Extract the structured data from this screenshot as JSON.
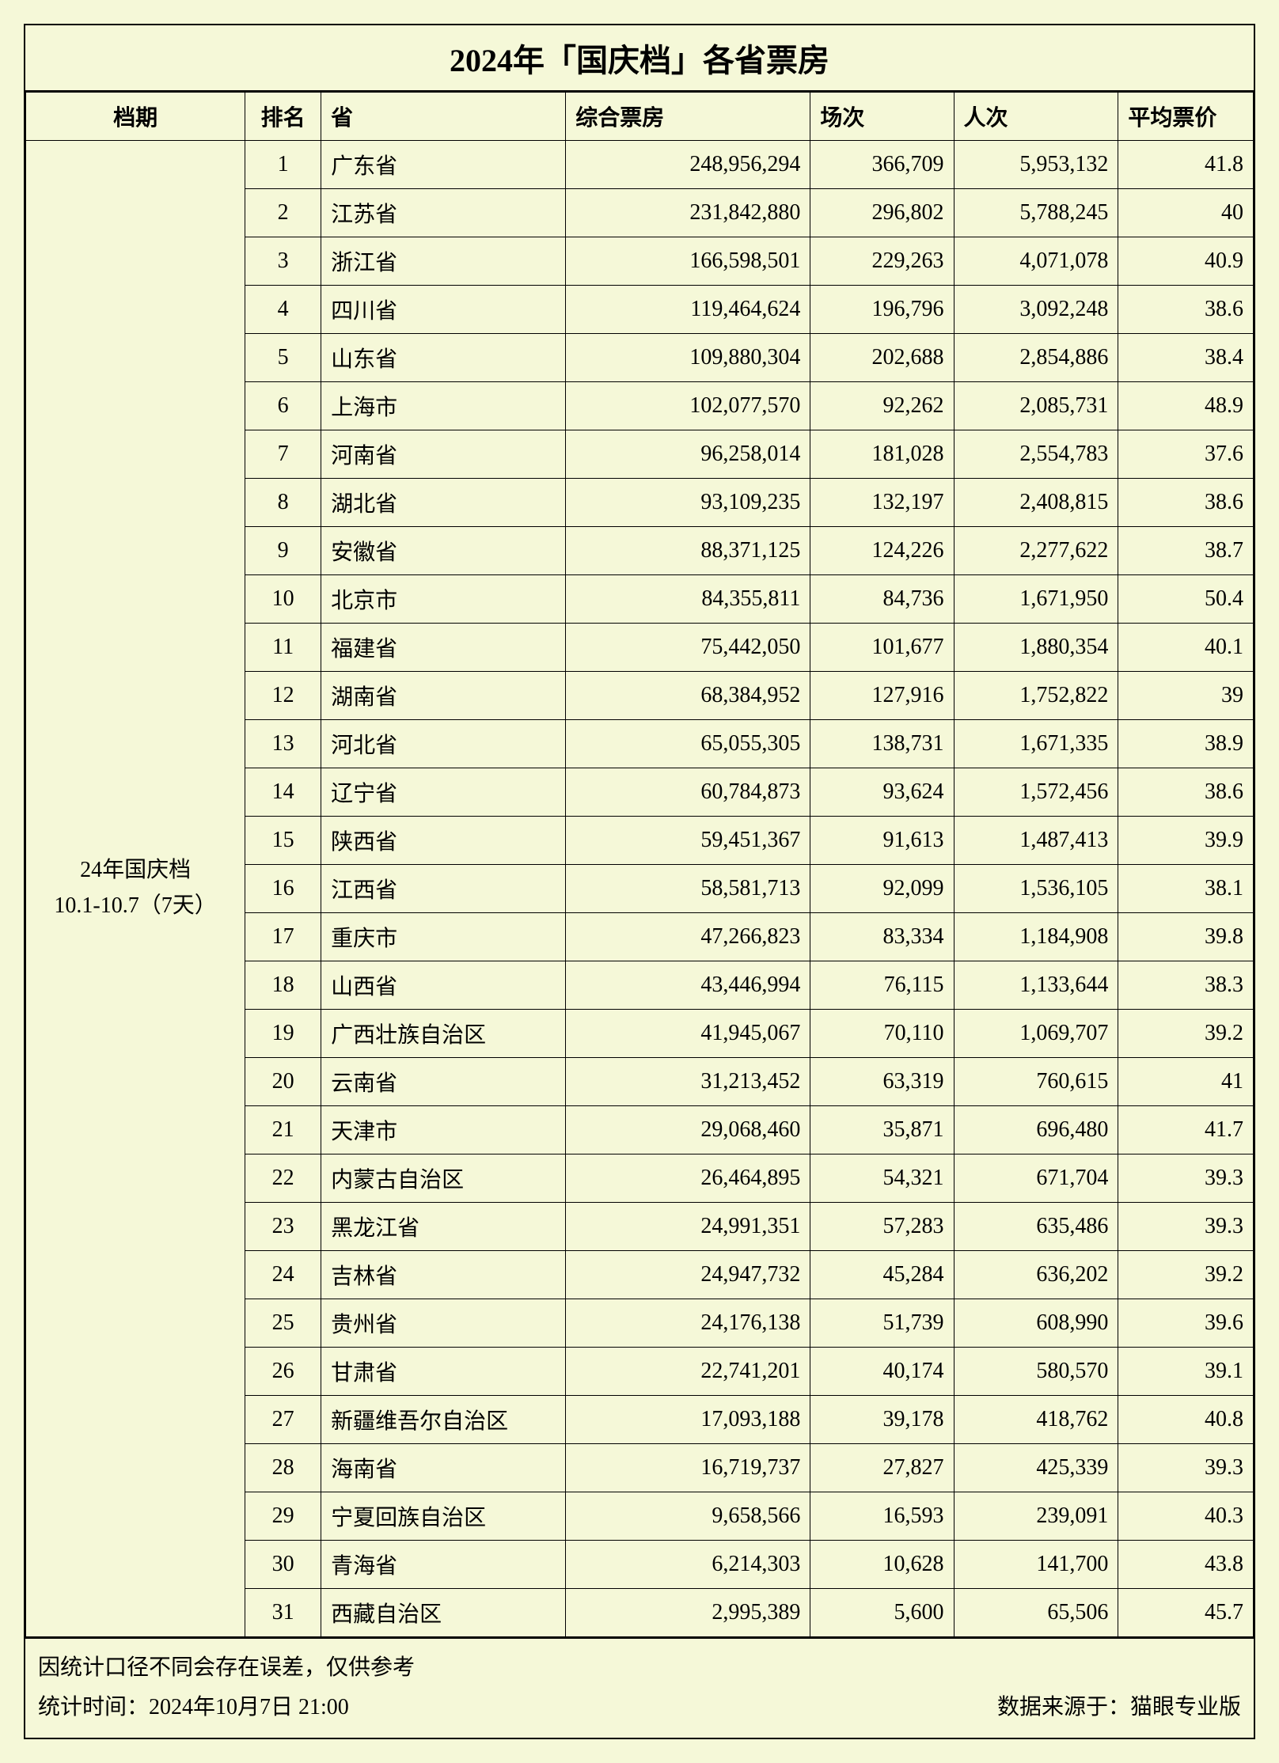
{
  "title": "2024年「国庆档」各省票房",
  "columns": {
    "period": "档期",
    "rank": "排名",
    "province": "省",
    "box_office": "综合票房",
    "sessions": "场次",
    "attendance": "人次",
    "avg_price": "平均票价"
  },
  "period_label_line1": "24年国庆档",
  "period_label_line2": "10.1-10.7（7天）",
  "rows": [
    {
      "rank": "1",
      "province": "广东省",
      "box": "248,956,294",
      "sessions": "366,709",
      "attend": "5,953,132",
      "price": "41.8"
    },
    {
      "rank": "2",
      "province": "江苏省",
      "box": "231,842,880",
      "sessions": "296,802",
      "attend": "5,788,245",
      "price": "40"
    },
    {
      "rank": "3",
      "province": "浙江省",
      "box": "166,598,501",
      "sessions": "229,263",
      "attend": "4,071,078",
      "price": "40.9"
    },
    {
      "rank": "4",
      "province": "四川省",
      "box": "119,464,624",
      "sessions": "196,796",
      "attend": "3,092,248",
      "price": "38.6"
    },
    {
      "rank": "5",
      "province": "山东省",
      "box": "109,880,304",
      "sessions": "202,688",
      "attend": "2,854,886",
      "price": "38.4"
    },
    {
      "rank": "6",
      "province": "上海市",
      "box": "102,077,570",
      "sessions": "92,262",
      "attend": "2,085,731",
      "price": "48.9"
    },
    {
      "rank": "7",
      "province": "河南省",
      "box": "96,258,014",
      "sessions": "181,028",
      "attend": "2,554,783",
      "price": "37.6"
    },
    {
      "rank": "8",
      "province": "湖北省",
      "box": "93,109,235",
      "sessions": "132,197",
      "attend": "2,408,815",
      "price": "38.6"
    },
    {
      "rank": "9",
      "province": "安徽省",
      "box": "88,371,125",
      "sessions": "124,226",
      "attend": "2,277,622",
      "price": "38.7"
    },
    {
      "rank": "10",
      "province": "北京市",
      "box": "84,355,811",
      "sessions": "84,736",
      "attend": "1,671,950",
      "price": "50.4"
    },
    {
      "rank": "11",
      "province": "福建省",
      "box": "75,442,050",
      "sessions": "101,677",
      "attend": "1,880,354",
      "price": "40.1"
    },
    {
      "rank": "12",
      "province": "湖南省",
      "box": "68,384,952",
      "sessions": "127,916",
      "attend": "1,752,822",
      "price": "39"
    },
    {
      "rank": "13",
      "province": "河北省",
      "box": "65,055,305",
      "sessions": "138,731",
      "attend": "1,671,335",
      "price": "38.9"
    },
    {
      "rank": "14",
      "province": "辽宁省",
      "box": "60,784,873",
      "sessions": "93,624",
      "attend": "1,572,456",
      "price": "38.6"
    },
    {
      "rank": "15",
      "province": "陕西省",
      "box": "59,451,367",
      "sessions": "91,613",
      "attend": "1,487,413",
      "price": "39.9"
    },
    {
      "rank": "16",
      "province": "江西省",
      "box": "58,581,713",
      "sessions": "92,099",
      "attend": "1,536,105",
      "price": "38.1"
    },
    {
      "rank": "17",
      "province": "重庆市",
      "box": "47,266,823",
      "sessions": "83,334",
      "attend": "1,184,908",
      "price": "39.8"
    },
    {
      "rank": "18",
      "province": "山西省",
      "box": "43,446,994",
      "sessions": "76,115",
      "attend": "1,133,644",
      "price": "38.3"
    },
    {
      "rank": "19",
      "province": "广西壮族自治区",
      "box": "41,945,067",
      "sessions": "70,110",
      "attend": "1,069,707",
      "price": "39.2"
    },
    {
      "rank": "20",
      "province": "云南省",
      "box": "31,213,452",
      "sessions": "63,319",
      "attend": "760,615",
      "price": "41"
    },
    {
      "rank": "21",
      "province": "天津市",
      "box": "29,068,460",
      "sessions": "35,871",
      "attend": "696,480",
      "price": "41.7"
    },
    {
      "rank": "22",
      "province": "内蒙古自治区",
      "box": "26,464,895",
      "sessions": "54,321",
      "attend": "671,704",
      "price": "39.3"
    },
    {
      "rank": "23",
      "province": "黑龙江省",
      "box": "24,991,351",
      "sessions": "57,283",
      "attend": "635,486",
      "price": "39.3"
    },
    {
      "rank": "24",
      "province": "吉林省",
      "box": "24,947,732",
      "sessions": "45,284",
      "attend": "636,202",
      "price": "39.2"
    },
    {
      "rank": "25",
      "province": "贵州省",
      "box": "24,176,138",
      "sessions": "51,739",
      "attend": "608,990",
      "price": "39.6"
    },
    {
      "rank": "26",
      "province": "甘肃省",
      "box": "22,741,201",
      "sessions": "40,174",
      "attend": "580,570",
      "price": "39.1"
    },
    {
      "rank": "27",
      "province": "新疆维吾尔自治区",
      "box": "17,093,188",
      "sessions": "39,178",
      "attend": "418,762",
      "price": "40.8"
    },
    {
      "rank": "28",
      "province": "海南省",
      "box": "16,719,737",
      "sessions": "27,827",
      "attend": "425,339",
      "price": "39.3"
    },
    {
      "rank": "29",
      "province": "宁夏回族自治区",
      "box": "9,658,566",
      "sessions": "16,593",
      "attend": "239,091",
      "price": "40.3"
    },
    {
      "rank": "30",
      "province": "青海省",
      "box": "6,214,303",
      "sessions": "10,628",
      "attend": "141,700",
      "price": "43.8"
    },
    {
      "rank": "31",
      "province": "西藏自治区",
      "box": "2,995,389",
      "sessions": "5,600",
      "attend": "65,506",
      "price": "45.7"
    }
  ],
  "footer": {
    "note": "因统计口径不同会存在误差，仅供参考",
    "stat_time": "统计时间：2024年10月7日 21:00",
    "source": "数据来源于：猫眼专业版"
  },
  "style": {
    "background_color": "#f5f8d8",
    "border_color": "#000000",
    "title_fontsize": 40,
    "cell_fontsize": 28
  }
}
